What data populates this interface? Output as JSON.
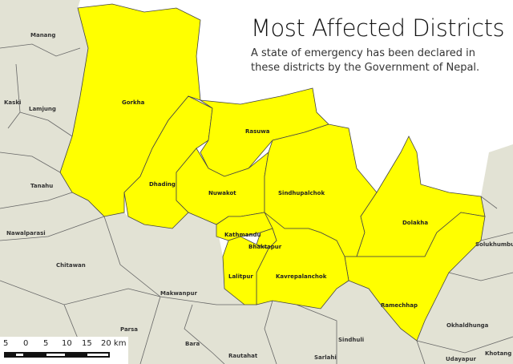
{
  "title": "Most Affected Districts",
  "subtitle": "A state of emergency has been declared in these districts by the Government of Nepal.",
  "colors": {
    "affected": "#ffff00",
    "other_land": "#e2e2d4",
    "border": "#555555",
    "background": "#ffffff"
  },
  "affected_districts": [
    "Gorkha",
    "Dhading",
    "Rasuwa",
    "Nuwakot",
    "Sindhupalchok",
    "Dolakha",
    "Kathmandu",
    "Bhaktapur",
    "Lalitpur",
    "Kavrepalanchok",
    "Ramechhap"
  ],
  "other_districts": [
    "Manang",
    "Kaski",
    "Lamjung",
    "Tanahu",
    "Nawalparasi",
    "Chitawan",
    "Makwanpur",
    "Parsa",
    "Bara",
    "Rautahat",
    "Sarlahi",
    "Sindhuli",
    "Okhaldhunga",
    "Solukhumbu",
    "Khotang",
    "Udayapur"
  ],
  "scale_bar": {
    "ticks": [
      "5",
      "0",
      "5",
      "10",
      "15",
      "20 km"
    ]
  }
}
